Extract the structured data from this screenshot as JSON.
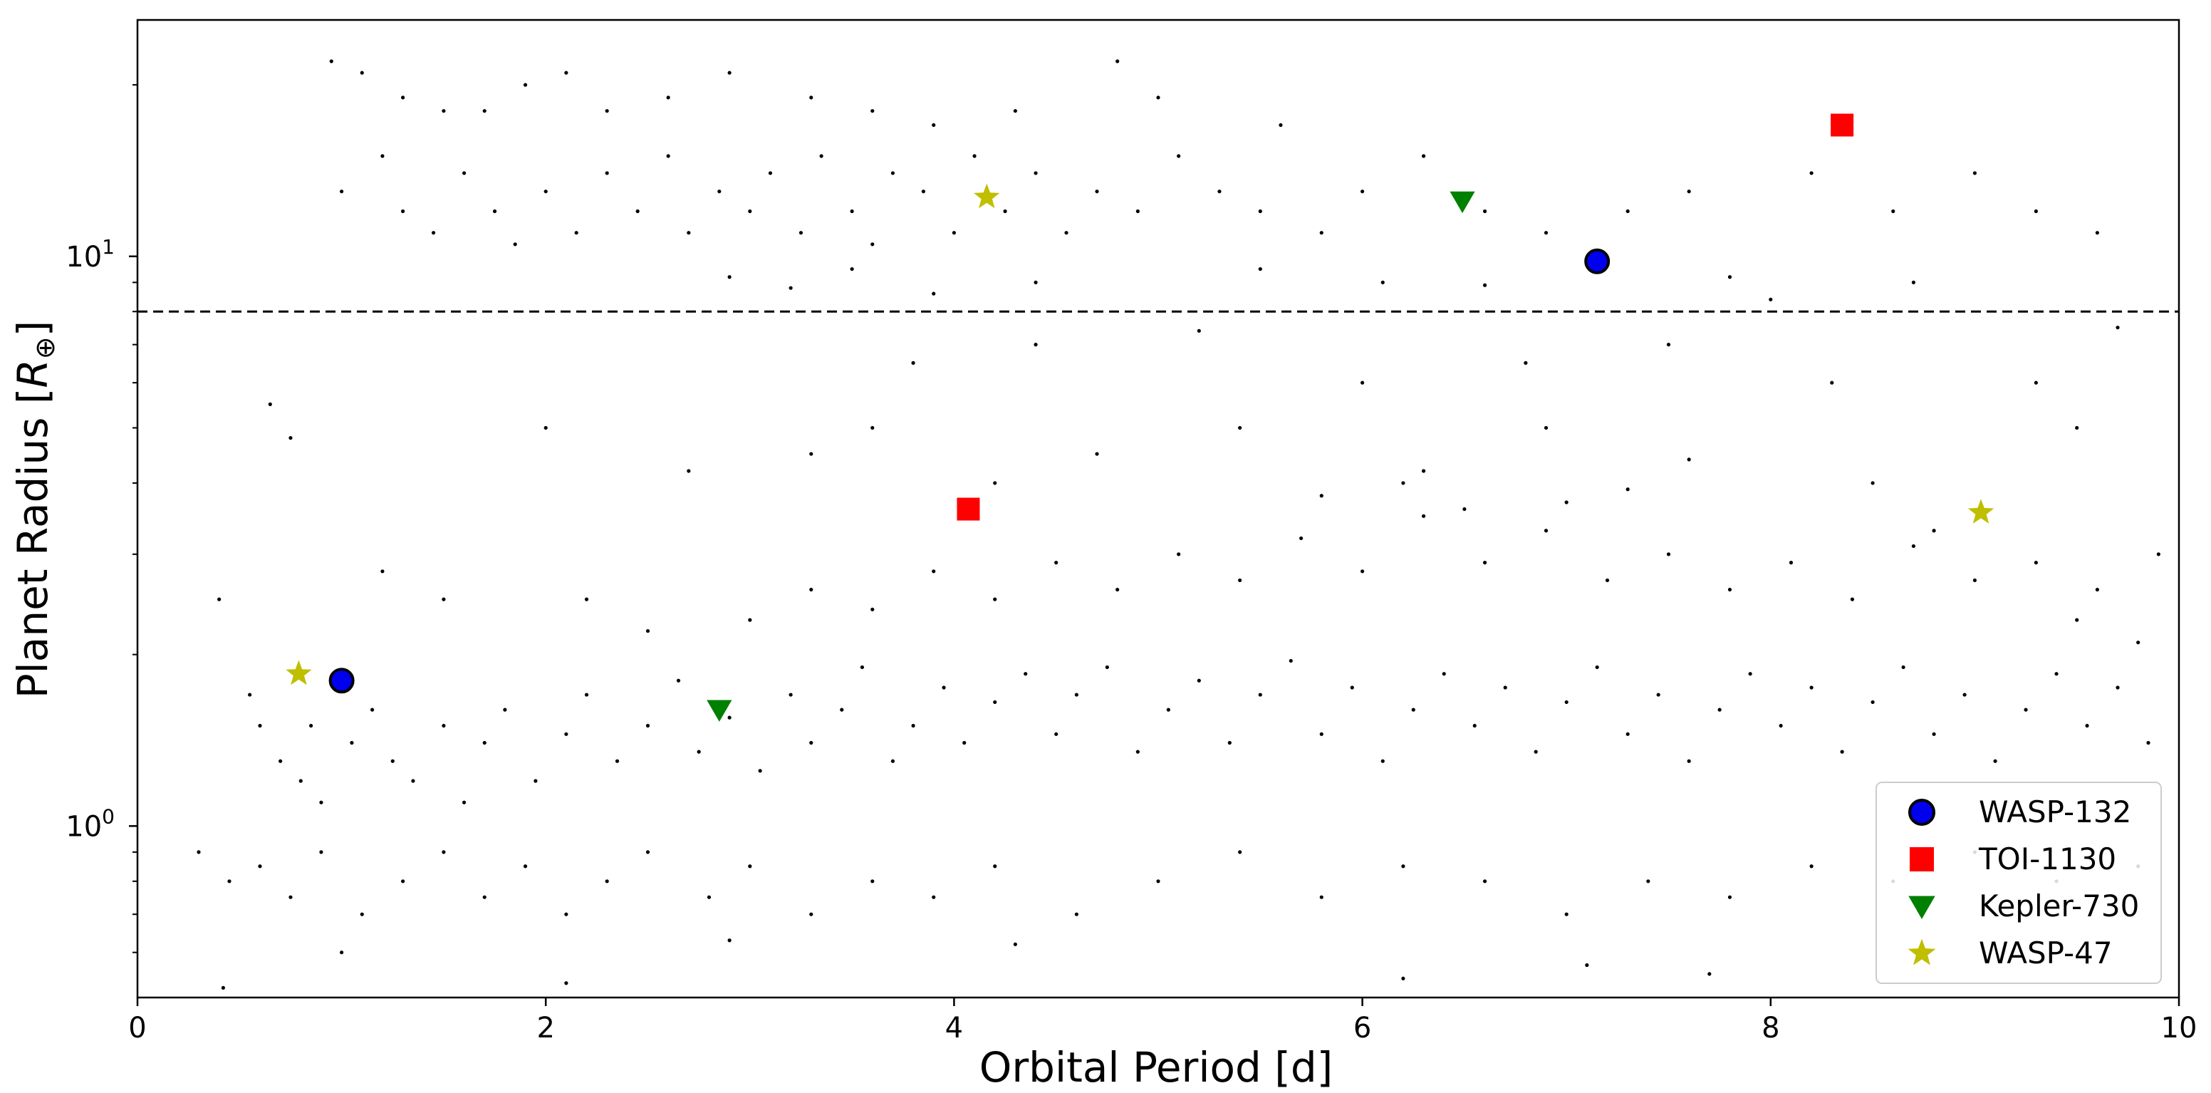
{
  "chart_data": {
    "type": "scatter",
    "title": "",
    "xlabel": "Orbital Period [d]",
    "ylabel_text": "Planet Radius [",
    "ylabel_symbol": "R",
    "ylabel_subscript": "⊕",
    "ylabel_close": "]",
    "xlim": [
      0,
      10
    ],
    "ylim": [
      0.5,
      26
    ],
    "yscale": "log",
    "grid": false,
    "legend_position": "bottom-right",
    "x_ticks": [
      {
        "value": 0,
        "label": "0"
      },
      {
        "value": 2,
        "label": "2"
      },
      {
        "value": 4,
        "label": "4"
      },
      {
        "value": 6,
        "label": "6"
      },
      {
        "value": 8,
        "label": "8"
      },
      {
        "value": 10,
        "label": "10"
      }
    ],
    "y_ticks": [
      {
        "value": 1,
        "label": "10",
        "exp": "0"
      },
      {
        "value": 10,
        "label": "10",
        "exp": "1"
      }
    ],
    "threshold_line": {
      "y": 8,
      "style": "dashed",
      "color": "#000000"
    },
    "background_population": {
      "color": "#000000",
      "points": [
        [
          0.95,
          22
        ],
        [
          1.1,
          21
        ],
        [
          1.3,
          19
        ],
        [
          1.5,
          18
        ],
        [
          1.7,
          18
        ],
        [
          1.9,
          20
        ],
        [
          2.1,
          21
        ],
        [
          2.3,
          18
        ],
        [
          2.6,
          19
        ],
        [
          2.9,
          21
        ],
        [
          3.3,
          19
        ],
        [
          3.6,
          18
        ],
        [
          3.9,
          17
        ],
        [
          4.3,
          18
        ],
        [
          4.8,
          22
        ],
        [
          5.0,
          19
        ],
        [
          5.6,
          17
        ],
        [
          1.0,
          13
        ],
        [
          1.2,
          15
        ],
        [
          1.3,
          12
        ],
        [
          1.45,
          11
        ],
        [
          1.6,
          14
        ],
        [
          1.75,
          12
        ],
        [
          1.85,
          10.5
        ],
        [
          2.0,
          13
        ],
        [
          2.15,
          11
        ],
        [
          2.3,
          14
        ],
        [
          2.45,
          12
        ],
        [
          2.6,
          15
        ],
        [
          2.7,
          11
        ],
        [
          2.85,
          13
        ],
        [
          3.0,
          12
        ],
        [
          3.1,
          14
        ],
        [
          3.25,
          11
        ],
        [
          3.35,
          15
        ],
        [
          3.5,
          12
        ],
        [
          3.6,
          10.5
        ],
        [
          3.7,
          14
        ],
        [
          3.85,
          13
        ],
        [
          4.0,
          11
        ],
        [
          4.1,
          15
        ],
        [
          4.25,
          12
        ],
        [
          4.4,
          14
        ],
        [
          4.55,
          11
        ],
        [
          4.7,
          13
        ],
        [
          4.9,
          12
        ],
        [
          5.1,
          15
        ],
        [
          5.3,
          13
        ],
        [
          5.5,
          12
        ],
        [
          5.8,
          11
        ],
        [
          6.0,
          13
        ],
        [
          6.3,
          15
        ],
        [
          6.6,
          12
        ],
        [
          6.9,
          11
        ],
        [
          7.3,
          12
        ],
        [
          7.6,
          13
        ],
        [
          8.2,
          14
        ],
        [
          8.6,
          12
        ],
        [
          9.0,
          14
        ],
        [
          9.3,
          12
        ],
        [
          9.6,
          11
        ],
        [
          2.9,
          9.2
        ],
        [
          3.2,
          8.8
        ],
        [
          3.5,
          9.5
        ],
        [
          3.9,
          8.6
        ],
        [
          4.4,
          9.0
        ],
        [
          5.5,
          9.5
        ],
        [
          6.1,
          9.0
        ],
        [
          6.6,
          8.9
        ],
        [
          7.8,
          9.2
        ],
        [
          8.0,
          8.4
        ],
        [
          8.7,
          9.0
        ],
        [
          3.8,
          6.5
        ],
        [
          4.4,
          7.0
        ],
        [
          5.2,
          7.4
        ],
        [
          6.0,
          6.0
        ],
        [
          6.8,
          6.5
        ],
        [
          7.5,
          7.0
        ],
        [
          8.3,
          6.0
        ],
        [
          9.3,
          6.0
        ],
        [
          9.7,
          7.5
        ],
        [
          3.3,
          4.5
        ],
        [
          3.6,
          5.0
        ],
        [
          4.2,
          4.0
        ],
        [
          4.7,
          4.5
        ],
        [
          5.4,
          5.0
        ],
        [
          6.3,
          4.2
        ],
        [
          6.9,
          5.0
        ],
        [
          7.6,
          4.4
        ],
        [
          8.5,
          4.0
        ],
        [
          9.5,
          5.0
        ],
        [
          0.65,
          5.5
        ],
        [
          0.75,
          4.8
        ],
        [
          2.0,
          5.0
        ],
        [
          2.7,
          4.2
        ],
        [
          0.4,
          2.5
        ],
        [
          0.55,
          1.7
        ],
        [
          0.6,
          1.5
        ],
        [
          0.7,
          1.3
        ],
        [
          0.8,
          1.2
        ],
        [
          0.85,
          1.5
        ],
        [
          0.9,
          1.1
        ],
        [
          1.05,
          1.4
        ],
        [
          1.15,
          1.6
        ],
        [
          1.25,
          1.3
        ],
        [
          1.35,
          1.2
        ],
        [
          1.5,
          1.5
        ],
        [
          1.6,
          1.1
        ],
        [
          1.7,
          1.4
        ],
        [
          1.8,
          1.6
        ],
        [
          1.95,
          1.2
        ],
        [
          2.1,
          1.45
        ],
        [
          2.2,
          1.7
        ],
        [
          2.35,
          1.3
        ],
        [
          2.5,
          1.5
        ],
        [
          2.65,
          1.8
        ],
        [
          2.75,
          1.35
        ],
        [
          2.9,
          1.55
        ],
        [
          3.05,
          1.25
        ],
        [
          3.2,
          1.7
        ],
        [
          3.3,
          1.4
        ],
        [
          3.45,
          1.6
        ],
        [
          3.55,
          1.9
        ],
        [
          3.7,
          1.3
        ],
        [
          3.8,
          1.5
        ],
        [
          3.95,
          1.75
        ],
        [
          4.05,
          1.4
        ],
        [
          4.2,
          1.65
        ],
        [
          4.35,
          1.85
        ],
        [
          4.5,
          1.45
        ],
        [
          4.6,
          1.7
        ],
        [
          4.75,
          1.9
        ],
        [
          4.9,
          1.35
        ],
        [
          5.05,
          1.6
        ],
        [
          5.2,
          1.8
        ],
        [
          5.35,
          1.4
        ],
        [
          5.5,
          1.7
        ],
        [
          5.65,
          1.95
        ],
        [
          5.8,
          1.45
        ],
        [
          5.95,
          1.75
        ],
        [
          6.1,
          1.3
        ],
        [
          6.25,
          1.6
        ],
        [
          6.4,
          1.85
        ],
        [
          6.55,
          1.5
        ],
        [
          6.7,
          1.75
        ],
        [
          6.85,
          1.35
        ],
        [
          7.0,
          1.65
        ],
        [
          7.15,
          1.9
        ],
        [
          7.3,
          1.45
        ],
        [
          7.45,
          1.7
        ],
        [
          7.6,
          1.3
        ],
        [
          7.75,
          1.6
        ],
        [
          7.9,
          1.85
        ],
        [
          8.05,
          1.5
        ],
        [
          8.2,
          1.75
        ],
        [
          8.35,
          1.35
        ],
        [
          8.5,
          1.65
        ],
        [
          8.65,
          1.9
        ],
        [
          8.8,
          1.45
        ],
        [
          8.95,
          1.7
        ],
        [
          9.1,
          1.3
        ],
        [
          9.25,
          1.6
        ],
        [
          9.4,
          1.85
        ],
        [
          9.55,
          1.5
        ],
        [
          9.7,
          1.75
        ],
        [
          9.85,
          1.4
        ],
        [
          3.0,
          2.3
        ],
        [
          3.3,
          2.6
        ],
        [
          3.6,
          2.4
        ],
        [
          3.9,
          2.8
        ],
        [
          4.2,
          2.5
        ],
        [
          4.5,
          2.9
        ],
        [
          4.8,
          2.6
        ],
        [
          5.1,
          3.0
        ],
        [
          5.4,
          2.7
        ],
        [
          5.7,
          3.2
        ],
        [
          6.0,
          2.8
        ],
        [
          6.3,
          3.5
        ],
        [
          6.6,
          2.9
        ],
        [
          6.9,
          3.3
        ],
        [
          7.2,
          2.7
        ],
        [
          7.5,
          3.0
        ],
        [
          7.8,
          2.6
        ],
        [
          8.1,
          2.9
        ],
        [
          8.4,
          2.5
        ],
        [
          8.7,
          3.1
        ],
        [
          9.0,
          2.7
        ],
        [
          9.3,
          2.9
        ],
        [
          9.6,
          2.6
        ],
        [
          9.9,
          3.0
        ],
        [
          5.8,
          3.8
        ],
        [
          6.2,
          4.0
        ],
        [
          6.5,
          3.6
        ],
        [
          7.0,
          3.7
        ],
        [
          7.3,
          3.9
        ],
        [
          8.8,
          3.3
        ],
        [
          9.5,
          2.3
        ],
        [
          9.8,
          2.1
        ],
        [
          2.2,
          2.5
        ],
        [
          2.5,
          2.2
        ],
        [
          1.2,
          2.8
        ],
        [
          1.5,
          2.5
        ],
        [
          0.3,
          0.9
        ],
        [
          0.45,
          0.8
        ],
        [
          0.6,
          0.85
        ],
        [
          0.75,
          0.75
        ],
        [
          0.9,
          0.9
        ],
        [
          1.1,
          0.7
        ],
        [
          1.3,
          0.8
        ],
        [
          1.5,
          0.9
        ],
        [
          1.7,
          0.75
        ],
        [
          1.9,
          0.85
        ],
        [
          2.1,
          0.7
        ],
        [
          2.3,
          0.8
        ],
        [
          2.5,
          0.9
        ],
        [
          2.8,
          0.75
        ],
        [
          3.0,
          0.85
        ],
        [
          3.3,
          0.7
        ],
        [
          3.6,
          0.8
        ],
        [
          3.9,
          0.75
        ],
        [
          4.2,
          0.85
        ],
        [
          4.6,
          0.7
        ],
        [
          5.0,
          0.8
        ],
        [
          5.4,
          0.9
        ],
        [
          5.8,
          0.75
        ],
        [
          6.2,
          0.85
        ],
        [
          6.6,
          0.8
        ],
        [
          7.0,
          0.7
        ],
        [
          7.4,
          0.8
        ],
        [
          7.8,
          0.75
        ],
        [
          8.2,
          0.85
        ],
        [
          8.6,
          0.8
        ],
        [
          9.0,
          0.9
        ],
        [
          9.4,
          0.8
        ],
        [
          9.8,
          0.85
        ],
        [
          0.42,
          0.52
        ],
        [
          2.1,
          0.53
        ],
        [
          6.2,
          0.54
        ],
        [
          7.7,
          0.55
        ],
        [
          7.1,
          0.57
        ],
        [
          4.3,
          0.62
        ],
        [
          2.9,
          0.63
        ],
        [
          1.0,
          0.6
        ]
      ]
    },
    "series": [
      {
        "name": "WASP-132",
        "marker": "circle",
        "color": "#0000ee",
        "edge": "#000000",
        "points": [
          [
            1.0,
            1.8
          ],
          [
            7.15,
            9.8
          ]
        ]
      },
      {
        "name": "TOI-1130",
        "marker": "square",
        "color": "#ff0000",
        "points": [
          [
            4.07,
            3.6
          ],
          [
            8.35,
            17.0
          ]
        ]
      },
      {
        "name": "Kepler-730",
        "marker": "triangle-down",
        "color": "#008000",
        "points": [
          [
            2.85,
            1.6
          ],
          [
            6.49,
            12.5
          ]
        ]
      },
      {
        "name": "WASP-47",
        "marker": "star",
        "color": "#bfbf00",
        "points": [
          [
            0.79,
            1.85
          ],
          [
            4.16,
            12.7
          ],
          [
            9.03,
            3.55
          ]
        ]
      }
    ]
  }
}
